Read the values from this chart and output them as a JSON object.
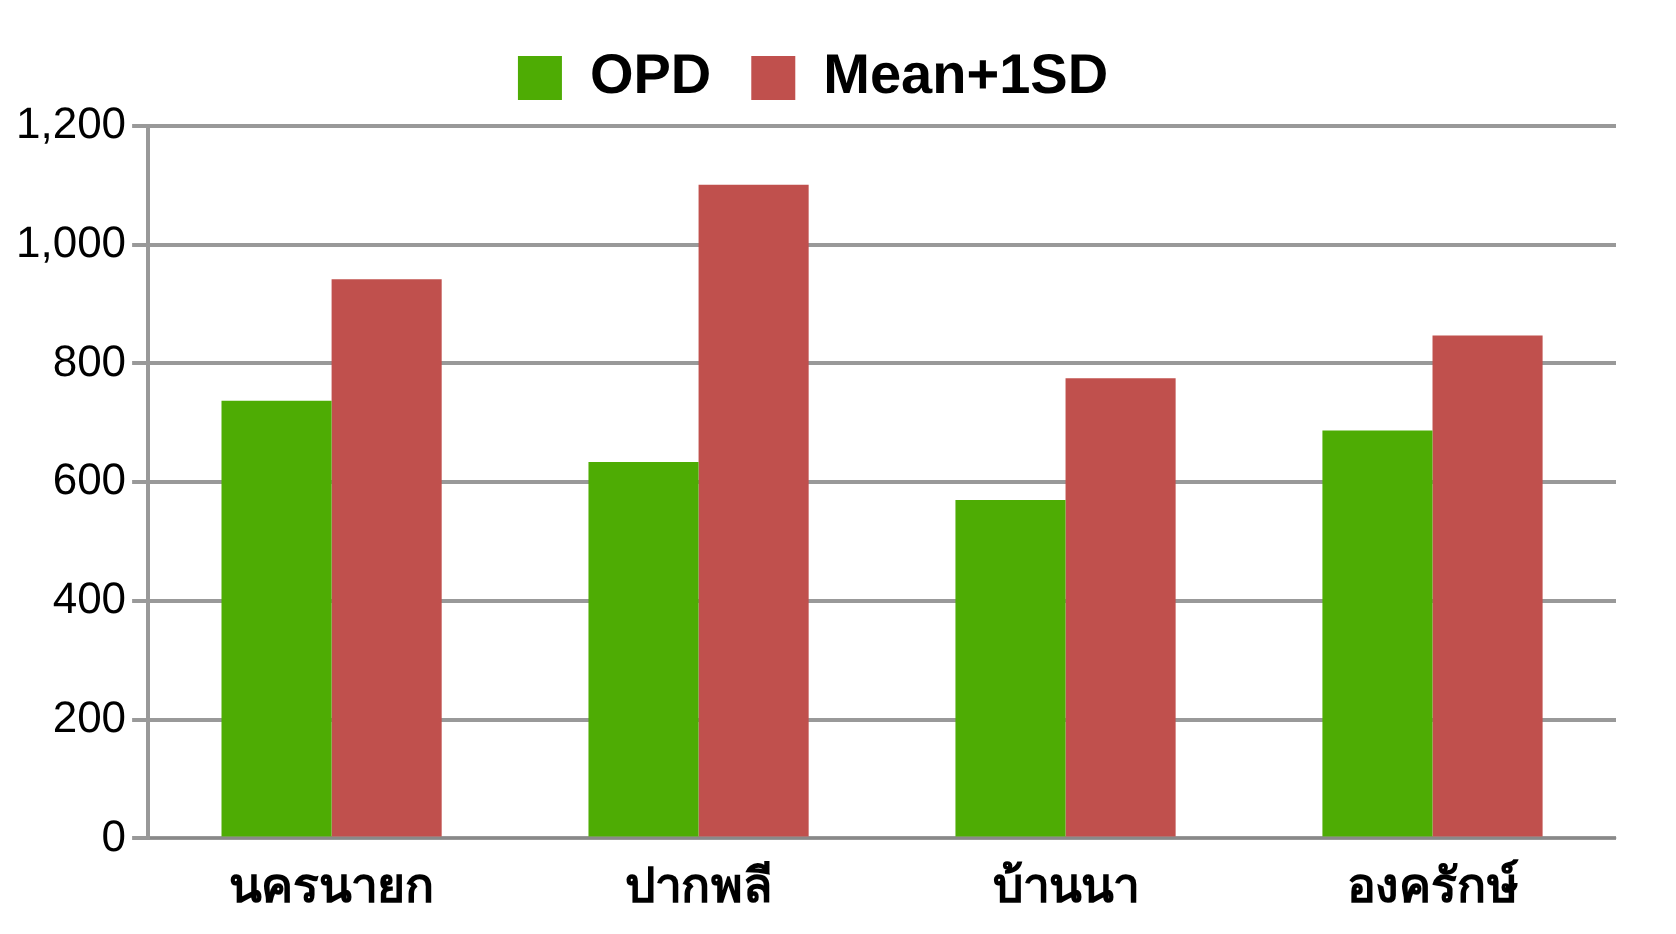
{
  "chart_data": {
    "type": "bar",
    "categories": [
      "นครนายก",
      "ปากพลี",
      "บ้านนา",
      "องครักษ์"
    ],
    "series": [
      {
        "name": "OPD",
        "color": "#4eac04",
        "values": [
          737,
          634,
          570,
          687
        ]
      },
      {
        "name": "Mean+1SD",
        "color": "#c0504d",
        "values": [
          942,
          1101,
          775,
          847
        ]
      }
    ],
    "ylim": [
      0,
      1200
    ],
    "yticks": [
      0,
      {
        "value": 200,
        "label": "200"
      },
      {
        "value": 400,
        "label": "400"
      },
      {
        "value": 600,
        "label": "600"
      },
      {
        "value": 800,
        "label": "800"
      },
      {
        "value": 1000,
        "label": "1,000"
      },
      {
        "value": 1200,
        "label": "1,200"
      }
    ],
    "grid": "y",
    "legend": "top"
  }
}
